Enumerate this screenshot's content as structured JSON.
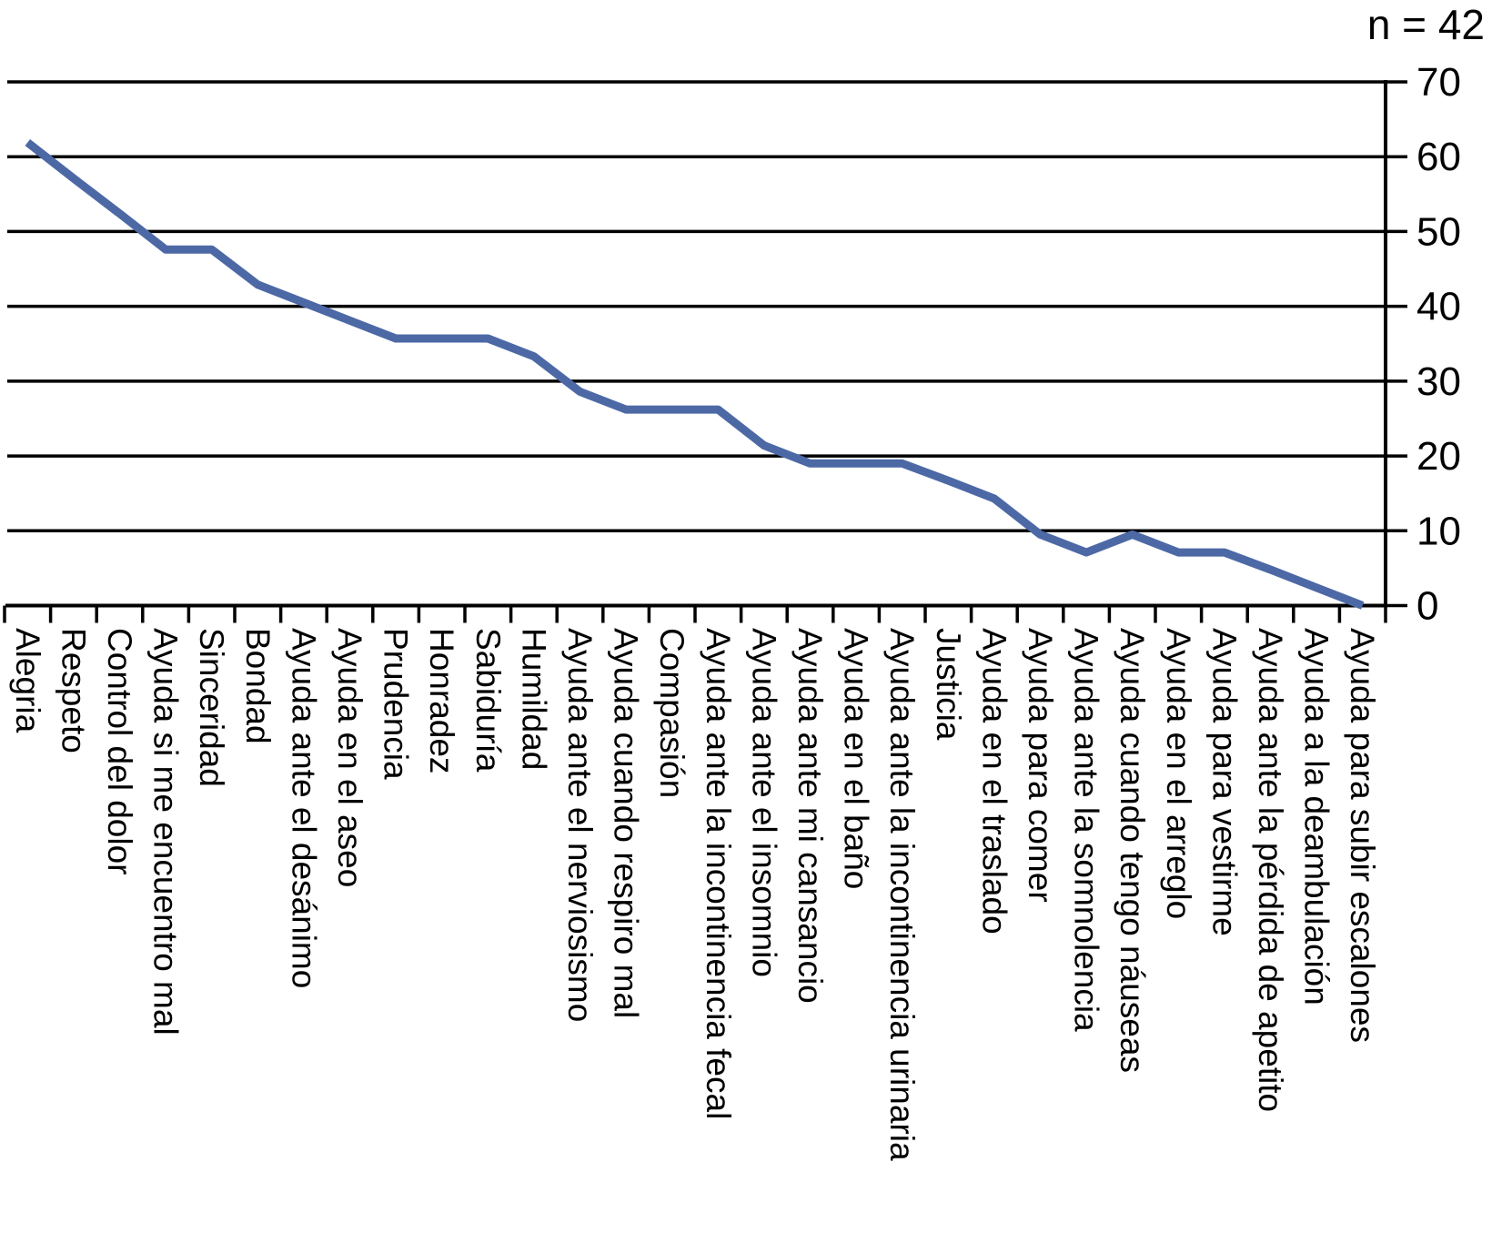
{
  "annotation": {
    "text": "n = 42"
  },
  "chart_data": {
    "type": "line",
    "title": "",
    "sample_size_label": "n = 42",
    "n_total": 42,
    "categories": [
      "Alegria",
      "Respeto",
      "Control del dolor",
      "Ayuda si me encuentro mal",
      "Sinceridad",
      "Bondad",
      "Ayuda ante el desánimo",
      "Ayuda en el aseo",
      "Prudencia",
      "Honradez",
      "Sabiduría",
      "Humildad",
      "Ayuda ante el nerviosismo",
      "Ayuda cuando respiro mal",
      "Compasión",
      "Ayuda ante la incontinencia fecal",
      "Ayuda ante el insomnio",
      "Ayuda ante mi cansancio",
      "Ayuda en el baño",
      "Ayuda ante la incontinencia urinaria",
      "Justicia",
      "Ayuda en el traslado",
      "Ayuda para comer",
      "Ayuda ante la somnolencia",
      "Ayuda cuando tengo náuseas",
      "Ayuda en el arreglo",
      "Ayuda para vestirme",
      "Ayuda ante la pérdida de apetito",
      "Ayuda a la deambulación",
      "Ayuda para subir escalones"
    ],
    "series": [
      {
        "values_pct": [
          61.9,
          57.1,
          52.4,
          47.6,
          47.6,
          42.9,
          40.5,
          38.1,
          35.7,
          35.7,
          35.7,
          33.3,
          28.6,
          26.2,
          26.2,
          26.2,
          21.4,
          19.0,
          19.0,
          19.0,
          16.7,
          14.3,
          9.5,
          7.1,
          9.5,
          7.1,
          7.1,
          4.8,
          2.4,
          0
        ],
        "counts_of_42": [
          26,
          24,
          22,
          20,
          20,
          18,
          17,
          16,
          15,
          15,
          15,
          14,
          12,
          11,
          11,
          11,
          9,
          8,
          8,
          8,
          7,
          6,
          4,
          3,
          4,
          3,
          3,
          2,
          1,
          0
        ]
      }
    ],
    "xlabel": "",
    "ylabel": "",
    "ylim": [
      0,
      70
    ],
    "yticks": [
      0,
      10,
      20,
      30,
      40,
      50,
      60,
      70
    ],
    "y_axis_side": "right",
    "grid": "horizontal",
    "legend": "none",
    "line_color": "#4c69a6",
    "axis_color": "#000000"
  }
}
